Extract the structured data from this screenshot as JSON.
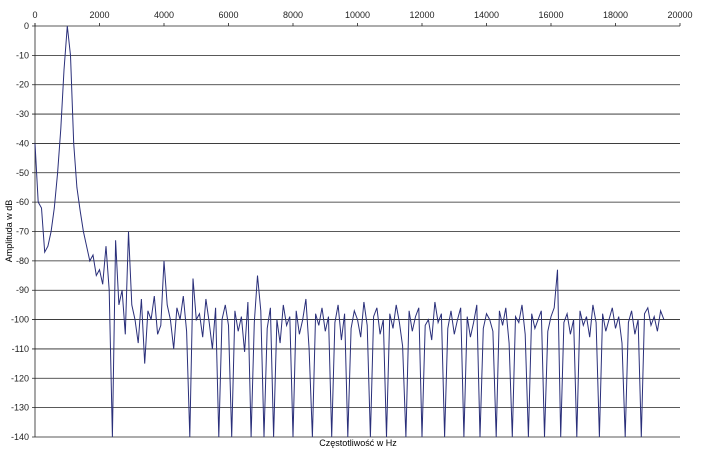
{
  "chart_data": {
    "type": "line",
    "title": "",
    "xlabel": "Częstotliwość w Hz",
    "ylabel": "Amplituda w dB",
    "xlim": [
      0,
      20000
    ],
    "ylim": [
      -140,
      0
    ],
    "xticks": [
      0,
      2000,
      4000,
      6000,
      8000,
      10000,
      12000,
      14000,
      16000,
      18000,
      20000
    ],
    "yticks": [
      0,
      -10,
      -20,
      -30,
      -40,
      -50,
      -60,
      -70,
      -80,
      -90,
      -100,
      -110,
      -120,
      -130,
      -140
    ],
    "grid": "horizontal",
    "legend": "none",
    "line_color": "#2a2f7a",
    "series": [
      {
        "x_start": 0,
        "x_step": 100,
        "values": [
          -40,
          -60,
          -62,
          -77,
          -75,
          -70,
          -62,
          -50,
          -35,
          -15,
          0,
          -10,
          -40,
          -55,
          -63,
          -70,
          -75,
          -80,
          -78,
          -85,
          -83,
          -88,
          -75,
          -90,
          -140,
          -73,
          -95,
          -90,
          -105,
          -70,
          -95,
          -100,
          -108,
          -93,
          -115,
          -97,
          -100,
          -92,
          -105,
          -102,
          -80,
          -95,
          -100,
          -110,
          -96,
          -100,
          -92,
          -104,
          -140,
          -86,
          -100,
          -98,
          -106,
          -93,
          -101,
          -110,
          -96,
          -140,
          -100,
          -95,
          -102,
          -140,
          -97,
          -104,
          -99,
          -111,
          -94,
          -140,
          -101,
          -85,
          -97,
          -140,
          -103,
          -96,
          -140,
          -100,
          -108,
          -95,
          -102,
          -99,
          -140,
          -97,
          -105,
          -100,
          -93,
          -110,
          -140,
          -98,
          -102,
          -96,
          -104,
          -99,
          -140,
          -101,
          -95,
          -107,
          -98,
          -140,
          -103,
          -97,
          -100,
          -106,
          -94,
          -102,
          -140,
          -99,
          -96,
          -105,
          -100,
          -140,
          -98,
          -103,
          -95,
          -101,
          -109,
          -140,
          -97,
          -104,
          -99,
          -96,
          -140,
          -102,
          -100,
          -107,
          -94,
          -101,
          -98,
          -140,
          -103,
          -97,
          -105,
          -100,
          -96,
          -140,
          -99,
          -106,
          -101,
          -95,
          -140,
          -103,
          -98,
          -100,
          -104,
          -140,
          -97,
          -102,
          -96,
          -108,
          -140,
          -99,
          -101,
          -95,
          -105,
          -140,
          -98,
          -103,
          -100,
          -97,
          -140,
          -104,
          -99,
          -96,
          -83,
          -140,
          -101,
          -98,
          -105,
          -100,
          -140,
          -97,
          -102,
          -99,
          -106,
          -95,
          -101,
          -140,
          -98,
          -104,
          -100,
          -96,
          -103,
          -99,
          -108,
          -140,
          -101,
          -97,
          -105,
          -100,
          -140,
          -98,
          -96,
          -102,
          -99,
          -104,
          -97,
          -100
        ]
      }
    ]
  }
}
